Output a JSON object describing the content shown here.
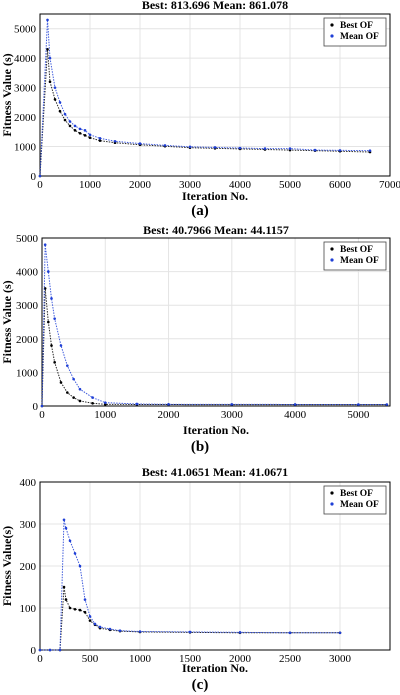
{
  "chart_data": [
    {
      "type": "scatter",
      "title": "Best: 813.696 Mean: 861.078",
      "xlabel": "Iteration No.",
      "ylabel": "Fitness Value (s)",
      "xlim": [
        0,
        7000
      ],
      "ylim": [
        0,
        5500
      ],
      "xticks": [
        "0",
        "1000",
        "2000",
        "3000",
        "4000",
        "5000",
        "6000",
        "7000"
      ],
      "yticks": [
        "0",
        "1000",
        "2000",
        "3000",
        "4000",
        "5000"
      ],
      "grid": true,
      "legend_position": "top-right",
      "series": [
        {
          "name": "Best OF",
          "color": "#000000",
          "marker": "dot",
          "x": [
            0,
            150,
            200,
            300,
            400,
            500,
            600,
            700,
            800,
            900,
            1000,
            1200,
            1500,
            2000,
            2500,
            3000,
            3500,
            4000,
            4500,
            5000,
            5500,
            6000,
            6600
          ],
          "values": [
            0,
            4300,
            3200,
            2600,
            2200,
            1900,
            1700,
            1550,
            1450,
            1380,
            1300,
            1200,
            1130,
            1060,
            1010,
            960,
            940,
            920,
            900,
            880,
            860,
            840,
            814
          ]
        },
        {
          "name": "Mean OF",
          "color": "#1f3fd6",
          "marker": "dot",
          "x": [
            0,
            150,
            200,
            300,
            400,
            500,
            600,
            700,
            800,
            900,
            1000,
            1200,
            1500,
            2000,
            2500,
            3000,
            3500,
            4000,
            4500,
            5000,
            5500,
            6000,
            6600
          ],
          "values": [
            0,
            5300,
            4000,
            3000,
            2500,
            2100,
            1850,
            1700,
            1600,
            1550,
            1400,
            1280,
            1180,
            1100,
            1040,
            990,
            970,
            950,
            930,
            930,
            880,
            870,
            861
          ]
        }
      ]
    },
    {
      "type": "scatter",
      "title": "Best: 40.7966 Mean: 44.1157",
      "xlabel": "Iteration No.",
      "ylabel": "Fitness Value (s)",
      "xlim": [
        0,
        5500
      ],
      "ylim": [
        0,
        5000
      ],
      "xticks": [
        "0",
        "1000",
        "2000",
        "3000",
        "4000",
        "5000"
      ],
      "yticks": [
        "0",
        "1000",
        "2000",
        "3000",
        "4000",
        "5000"
      ],
      "grid": true,
      "legend_position": "top-right",
      "series": [
        {
          "name": "Best OF",
          "color": "#000000",
          "marker": "dot",
          "x": [
            0,
            50,
            100,
            150,
            200,
            300,
            400,
            500,
            600,
            800,
            1000,
            1500,
            2000,
            3000,
            4000,
            5000,
            5450
          ],
          "values": [
            0,
            3500,
            2500,
            1800,
            1300,
            700,
            400,
            250,
            150,
            80,
            50,
            45,
            43,
            42,
            41,
            41,
            41
          ]
        },
        {
          "name": "Mean OF",
          "color": "#1f3fd6",
          "marker": "dot",
          "x": [
            0,
            50,
            100,
            150,
            200,
            300,
            400,
            500,
            600,
            800,
            1000,
            1500,
            2000,
            3000,
            4000,
            5000,
            5450
          ],
          "values": [
            0,
            4800,
            4000,
            3200,
            2600,
            1800,
            1200,
            800,
            500,
            250,
            100,
            60,
            50,
            48,
            46,
            45,
            44
          ]
        }
      ]
    },
    {
      "type": "scatter",
      "title": "Best: 41.0651 Mean: 41.0671",
      "xlabel": "Iteration No.",
      "ylabel": "Fitness Value(s)",
      "xlim": [
        0,
        3500
      ],
      "ylim": [
        0,
        400
      ],
      "xticks": [
        "0",
        "500",
        "1000",
        "1500",
        "2000",
        "2500",
        "3000"
      ],
      "yticks": [
        "0",
        "100",
        "200",
        "300",
        "400"
      ],
      "grid": true,
      "legend_position": "top-right",
      "series": [
        {
          "name": "Best OF",
          "color": "#000000",
          "marker": "dot",
          "x": [
            0,
            100,
            200,
            240,
            260,
            300,
            350,
            400,
            450,
            500,
            550,
            600,
            700,
            800,
            1000,
            1500,
            2000,
            2500,
            3000
          ],
          "values": [
            0,
            0,
            0,
            150,
            120,
            100,
            97,
            95,
            90,
            70,
            60,
            52,
            48,
            45,
            43,
            42,
            41,
            41,
            41
          ]
        },
        {
          "name": "Mean OF",
          "color": "#1f3fd6",
          "marker": "dot",
          "x": [
            0,
            100,
            200,
            240,
            260,
            300,
            350,
            400,
            450,
            500,
            550,
            600,
            700,
            800,
            1000,
            1500,
            2000,
            2500,
            3000
          ],
          "values": [
            0,
            0,
            0,
            310,
            290,
            260,
            230,
            200,
            120,
            80,
            62,
            55,
            50,
            46,
            44,
            43,
            42,
            41,
            41
          ]
        }
      ]
    }
  ],
  "captions": [
    "(a)",
    "(b)",
    "(c)"
  ]
}
